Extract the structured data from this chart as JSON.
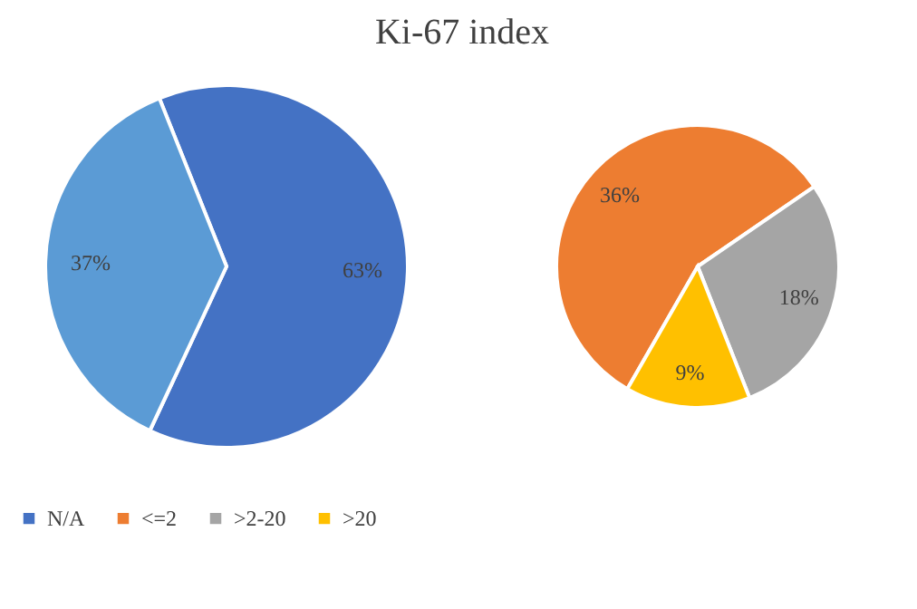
{
  "chart_data": [
    {
      "type": "pie",
      "title": "Ki-67 index",
      "categories": [
        "N/A",
        null
      ],
      "values": [
        63,
        37
      ],
      "colors": [
        "#4472c4",
        "#5b9bd5"
      ],
      "value_labels": [
        "63%",
        "37%"
      ],
      "legend": "bottom"
    },
    {
      "type": "pie",
      "categories": [
        "<=2",
        ">2-20",
        ">20"
      ],
      "values": [
        36,
        18,
        9
      ],
      "colors": [
        "#ed7d31",
        "#a5a5a5",
        "#ffc000"
      ],
      "value_labels": [
        "36%",
        "18%",
        "9%"
      ],
      "legend": "bottom"
    }
  ]
}
